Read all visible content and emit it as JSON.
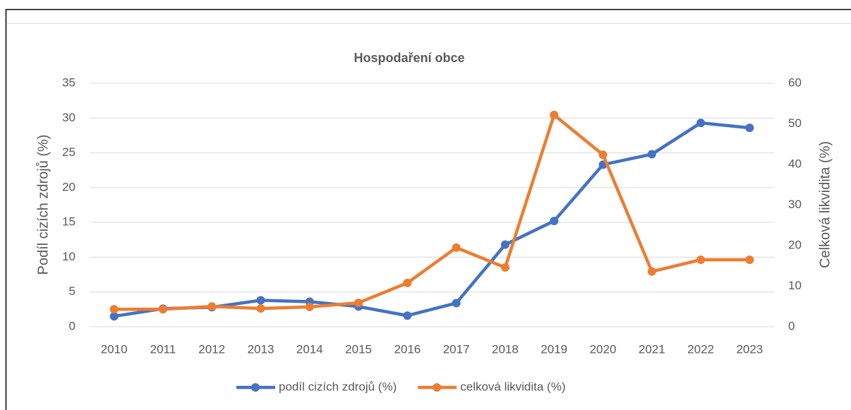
{
  "chart_data": {
    "type": "line",
    "title": "Hospodaření obce",
    "categories": [
      "2010",
      "2011",
      "2012",
      "2013",
      "2014",
      "2015",
      "2016",
      "2017",
      "2018",
      "2019",
      "2020",
      "2021",
      "2022",
      "2023"
    ],
    "series": [
      {
        "name": "podíl cizích zdrojů (%)",
        "color": "#4472c4",
        "axis": "y",
        "values": [
          1.5,
          2.6,
          2.8,
          3.8,
          3.6,
          2.9,
          1.6,
          3.4,
          11.8,
          15.2,
          23.3,
          24.8,
          29.3,
          28.6
        ]
      },
      {
        "name": "celková likvidita (%)",
        "color": "#ed7d31",
        "axis": "y2",
        "values": [
          4.3,
          4.3,
          5.0,
          4.5,
          4.9,
          5.9,
          10.8,
          19.5,
          14.6,
          52.2,
          42.4,
          13.6,
          16.5,
          16.5
        ]
      }
    ],
    "ylabel": "Podíl cizích zdrojů (%)",
    "y2label": "Celková likvidita (%)",
    "ylim": [
      0,
      35
    ],
    "yticks": [
      0,
      5,
      10,
      15,
      20,
      25,
      30,
      35
    ],
    "y2lim": [
      0,
      60
    ],
    "y2ticks": [
      0,
      10,
      20,
      30,
      40,
      50,
      60
    ],
    "grid": true,
    "legend": "bottom"
  }
}
